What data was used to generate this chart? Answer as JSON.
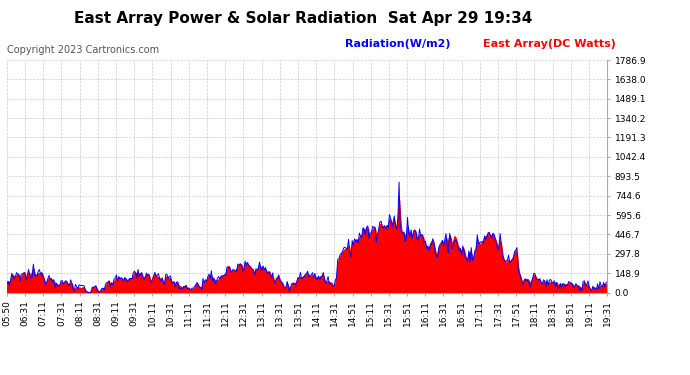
{
  "title": "East Array Power & Solar Radiation  Sat Apr 29 19:34",
  "copyright": "Copyright 2023 Cartronics.com",
  "legend_radiation": "Radiation(W/m2)",
  "legend_east": "East Array(DC Watts)",
  "radiation_color": "blue",
  "east_color": "red",
  "background_color": "#ffffff",
  "grid_color": "#cccccc",
  "ylim": [
    0,
    1786.9
  ],
  "yticks": [
    0.0,
    148.9,
    297.8,
    446.7,
    595.6,
    744.6,
    893.5,
    1042.4,
    1191.3,
    1340.2,
    1489.1,
    1638.0,
    1786.9
  ],
  "ytick_labels": [
    "0.0",
    "148.9",
    "297.8",
    "446.7",
    "595.6",
    "744.6",
    "893.5",
    "1042.4",
    "1191.3",
    "1340.2",
    "1489.1",
    "1638.0",
    "1786.9"
  ],
  "title_fontsize": 11,
  "copyright_fontsize": 7,
  "legend_fontsize": 8,
  "axis_fontsize": 6.5,
  "xtick_labels": [
    "05:50",
    "06:31",
    "07:11",
    "07:31",
    "08:11",
    "08:31",
    "09:11",
    "09:31",
    "10:11",
    "10:31",
    "11:11",
    "11:31",
    "12:11",
    "12:31",
    "13:11",
    "13:31",
    "13:51",
    "14:11",
    "14:31",
    "14:51",
    "15:11",
    "15:31",
    "15:51",
    "16:11",
    "16:31",
    "16:51",
    "17:11",
    "17:31",
    "17:51",
    "18:11",
    "18:31",
    "18:51",
    "19:11",
    "19:31"
  ]
}
